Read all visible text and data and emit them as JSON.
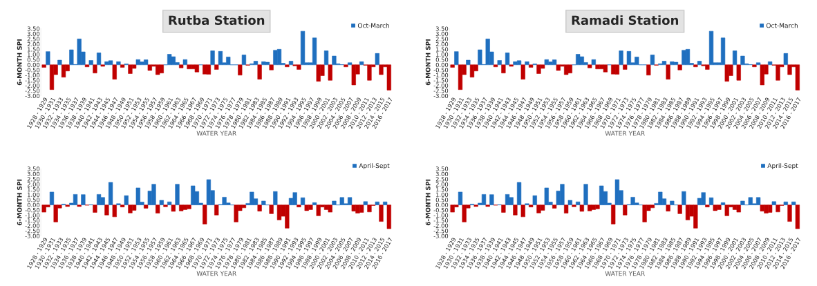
{
  "chart_data": [
    {
      "type": "bar",
      "title": "Rutba Station",
      "xlabel": "WATER YEAR",
      "ylabel": "6-MONTH SPI",
      "legend": "top right",
      "grid": false,
      "categories": [
        "1928 - 1929",
        null,
        "1930 - 1931",
        null,
        "1932 - 1933",
        null,
        "1934 - 1935",
        null,
        "1936 - 1937",
        null,
        "1938 - 1939",
        null,
        "1940 - 1941",
        null,
        "1942 - 1943",
        null,
        "1944 - 1945",
        null,
        "1946 - 1947",
        null,
        "1948 - 1949",
        null,
        "1950 - 1951",
        null,
        "1952 - 1953",
        null,
        "1954 - 1955",
        null,
        "1956 - 1957",
        null,
        "1958 - 1959",
        null,
        "1960 - 1961",
        null,
        "1962 - 1963",
        null,
        "1964 - 1965",
        null,
        "1966 - 1967",
        null,
        "1968 - 1969",
        null,
        "1970 - 1971",
        null,
        "1972 - 1973",
        null,
        "1974 - 1975",
        null,
        "1976 - 1977",
        null,
        "1978 - 1979",
        null,
        "1980 - 1981",
        null,
        "1982 - 1983",
        null,
        "1984 - 1985",
        null,
        "1986 - 1987",
        null,
        "1988 - 1989",
        null,
        "1990 - 1991",
        null,
        "1992 - 1993",
        null,
        "1994 - 1995",
        null,
        "1996 - 1997",
        null,
        "1998 - 1999",
        null,
        "2000 - 2001",
        null,
        "2002 - 2003",
        null,
        "2004 - 2005",
        null,
        "2006 - 2007",
        null,
        "2008 - 2009",
        null,
        "2010 - 2011",
        null,
        "2012 - 2013",
        null,
        "2014 - 2015",
        null,
        "2016 - 2017"
      ],
      "ylim": [
        -3.0,
        3.5
      ],
      "yticks": [
        {
          "value": -3.0,
          "label": "-3.00"
        },
        {
          "value": -2.5,
          "label": "-2.50"
        },
        {
          "value": -2.0,
          "label": "-2.00"
        },
        {
          "value": -1.5,
          "label": "-1.50"
        },
        {
          "value": -1.0,
          "label": "-1.00"
        },
        {
          "value": -0.5,
          "label": "-0.50"
        },
        {
          "value": 0,
          "label": "0.00"
        },
        {
          "value": 0.5,
          "label": "0.50"
        },
        {
          "value": 1.0,
          "label": "1.00"
        },
        {
          "value": 1.5,
          "label": "1.50"
        },
        {
          "value": 2.0,
          "label": "2.00"
        },
        {
          "value": 2.5,
          "label": "2.50"
        },
        {
          "value": 3.0,
          "label": "3.00"
        },
        {
          "value": 3.5,
          "label": "3.50"
        }
      ],
      "series": [
        {
          "name": "Oct-March",
          "color": "#1f6fbf",
          "colors": [
            "#c00000",
            "#1f6fbf",
            "#c00000",
            "#c00000",
            "#1f6fbf",
            "#c00000",
            "#c00000",
            "#1f6fbf",
            "#1f6fbf",
            "#1f6fbf",
            "#1f6fbf",
            "#c00000",
            "#1f6fbf",
            "#c00000",
            "#1f6fbf",
            "#c00000",
            "#1f6fbf",
            "#1f6fbf",
            "#c00000",
            "#1f6fbf",
            "#c00000",
            "#1f6fbf",
            "#c00000",
            "#c00000",
            "#1f6fbf",
            "#1f6fbf",
            "#1f6fbf",
            "#c00000",
            "#c00000",
            "#c00000",
            "#c00000",
            "#1f6fbf",
            "#1f6fbf",
            "#1f6fbf",
            "#1f6fbf",
            "#c00000",
            "#1f6fbf",
            "#c00000",
            "#c00000",
            "#c00000",
            "#1f6fbf",
            "#c00000",
            "#c00000",
            "#1f6fbf",
            "#c00000",
            "#1f6fbf",
            "#1f6fbf",
            "#1f6fbf",
            "#1f6fbf",
            "#1f6fbf",
            "#c00000",
            "#1f6fbf",
            "#c00000",
            "#1f6fbf",
            "#1f6fbf",
            "#c00000",
            "#1f6fbf",
            "#1f6fbf",
            "#c00000",
            "#1f6fbf",
            "#1f6fbf",
            "#1f6fbf",
            "#c00000",
            "#1f6fbf",
            "#c00000",
            "#c00000",
            "#1f6fbf",
            "#1f6fbf",
            "#1f6fbf",
            "#1f6fbf",
            "#c00000",
            "#c00000",
            "#1f6fbf",
            "#c00000",
            "#1f6fbf",
            "#1f6fbf",
            "#1f6fbf",
            "#c00000",
            "#1f6fbf",
            "#c00000",
            "#c00000",
            "#1f6fbf",
            "#c00000",
            "#c00000",
            "#c00000",
            "#1f6fbf",
            "#c00000",
            "#c00000",
            "#c00000"
          ],
          "values": [
            -0.25,
            1.28,
            -2.4,
            -0.95,
            0.45,
            -1.2,
            -0.6,
            1.45,
            0.03,
            2.5,
            1.25,
            -0.2,
            0.42,
            -0.8,
            1.15,
            -0.15,
            0.3,
            0.4,
            -1.4,
            0.3,
            -0.25,
            0.08,
            -0.85,
            -0.35,
            0.5,
            0.28,
            0.48,
            -0.55,
            -0.15,
            -0.95,
            -0.8,
            0,
            1.02,
            0.78,
            0.22,
            -0.3,
            0.5,
            -0.4,
            -0.4,
            -0.7,
            0,
            -0.9,
            -0.92,
            1.35,
            -0.45,
            1.3,
            0.2,
            0.75,
            0,
            0,
            -1.0,
            0.95,
            -0.05,
            0.1,
            0.35,
            -1.4,
            0.3,
            0.25,
            -0.5,
            1.4,
            1.5,
            0.15,
            -0.2,
            0.35,
            -0.1,
            -0.45,
            3.25,
            0.2,
            0.2,
            2.6,
            -1.6,
            -1.05,
            1.35,
            -1.5,
            0.85,
            0.1,
            0.02,
            -0.2,
            0.2,
            -1.95,
            -0.9,
            0.3,
            -0.05,
            -1.5,
            -0.2,
            1.1,
            -0.95,
            -0.2,
            -2.45
          ]
        }
      ]
    },
    {
      "type": "bar",
      "title": "Ramadi Station",
      "xlabel": "WATER YEAR",
      "ylabel": "6-MONTH SPI",
      "legend": "top right",
      "grid": false,
      "categories": [
        "1928 - 1929",
        null,
        "1930 - 1931",
        null,
        "1932 - 1933",
        null,
        "1934 - 1935",
        null,
        "1936 - 1937",
        null,
        "1938 - 1939",
        null,
        "1940 - 1941",
        null,
        "1942 - 1943",
        null,
        "1944 - 1945",
        null,
        "1946 - 1947",
        null,
        "1948 - 1949",
        null,
        "1950 - 1951",
        null,
        "1952 - 1953",
        null,
        "1954 - 1955",
        null,
        "1956 - 1957",
        null,
        "1958 - 1959",
        null,
        "1960 - 1961",
        null,
        "1962 - 1963",
        null,
        "1964 - 1965",
        null,
        "1966 - 1967",
        null,
        "1968 - 1969",
        null,
        "1970 - 1971",
        null,
        "1972 - 1973",
        null,
        "1974 - 1975",
        null,
        "1976 - 1977",
        null,
        "1978 - 1979",
        null,
        "1980 - 1981",
        null,
        "1982 - 1983",
        null,
        "1984 - 1985",
        null,
        "1986 - 1987",
        null,
        "1988 - 1989",
        null,
        "1990 - 1991",
        null,
        "1992 - 1993",
        null,
        "1994 - 1995",
        null,
        "1996 - 1997",
        null,
        "1998 - 1999",
        null,
        "2000 - 2001",
        null,
        "2002 - 2003",
        null,
        "2004 - 2005",
        null,
        "2006 - 2007",
        null,
        "2008 - 2009",
        null,
        "2010 - 2011",
        null,
        "2012 - 2013",
        null,
        "2014 - 2015",
        null,
        "2016 - 2017"
      ],
      "ylim": [
        -3.0,
        3.5
      ],
      "yticks": [
        {
          "value": -3.0,
          "label": "-3.00"
        },
        {
          "value": -2.5,
          "label": "-2.50"
        },
        {
          "value": -2.0,
          "label": "-2.00"
        },
        {
          "value": -1.5,
          "label": "-1.50"
        },
        {
          "value": -1.0,
          "label": "-1.00"
        },
        {
          "value": -0.5,
          "label": "-0.50"
        },
        {
          "value": 0,
          "label": "0.00"
        },
        {
          "value": 0.5,
          "label": "0.50"
        },
        {
          "value": 1.0,
          "label": "1.00"
        },
        {
          "value": 1.5,
          "label": "1.50"
        },
        {
          "value": 2.0,
          "label": "2.00"
        },
        {
          "value": 2.5,
          "label": "2.50"
        },
        {
          "value": 3.0,
          "label": "3.00"
        },
        {
          "value": 3.5,
          "label": "3.50"
        }
      ],
      "series": [
        {
          "name": "Oct-March",
          "color": "#1f6fbf",
          "colors": [
            "#c00000",
            "#1f6fbf",
            "#c00000",
            "#c00000",
            "#1f6fbf",
            "#c00000",
            "#c00000",
            "#1f6fbf",
            "#1f6fbf",
            "#1f6fbf",
            "#1f6fbf",
            "#c00000",
            "#1f6fbf",
            "#c00000",
            "#1f6fbf",
            "#c00000",
            "#1f6fbf",
            "#1f6fbf",
            "#c00000",
            "#1f6fbf",
            "#c00000",
            "#1f6fbf",
            "#c00000",
            "#c00000",
            "#1f6fbf",
            "#1f6fbf",
            "#1f6fbf",
            "#c00000",
            "#c00000",
            "#c00000",
            "#c00000",
            "#1f6fbf",
            "#1f6fbf",
            "#1f6fbf",
            "#1f6fbf",
            "#c00000",
            "#1f6fbf",
            "#c00000",
            "#c00000",
            "#c00000",
            "#1f6fbf",
            "#c00000",
            "#c00000",
            "#1f6fbf",
            "#c00000",
            "#1f6fbf",
            "#1f6fbf",
            "#1f6fbf",
            "#1f6fbf",
            "#1f6fbf",
            "#c00000",
            "#1f6fbf",
            "#c00000",
            "#1f6fbf",
            "#1f6fbf",
            "#c00000",
            "#1f6fbf",
            "#1f6fbf",
            "#c00000",
            "#1f6fbf",
            "#1f6fbf",
            "#1f6fbf",
            "#c00000",
            "#1f6fbf",
            "#c00000",
            "#c00000",
            "#1f6fbf",
            "#1f6fbf",
            "#1f6fbf",
            "#1f6fbf",
            "#c00000",
            "#c00000",
            "#1f6fbf",
            "#c00000",
            "#1f6fbf",
            "#1f6fbf",
            "#1f6fbf",
            "#c00000",
            "#1f6fbf",
            "#c00000",
            "#c00000",
            "#1f6fbf",
            "#c00000",
            "#c00000",
            "#c00000",
            "#1f6fbf",
            "#c00000",
            "#c00000",
            "#c00000"
          ],
          "values": [
            -0.25,
            1.28,
            -2.4,
            -0.95,
            0.45,
            -1.2,
            -0.6,
            1.45,
            0.03,
            2.5,
            1.25,
            -0.2,
            0.42,
            -0.8,
            1.15,
            -0.15,
            0.3,
            0.4,
            -1.4,
            0.3,
            -0.25,
            0.08,
            -0.85,
            -0.35,
            0.5,
            0.28,
            0.48,
            -0.55,
            -0.15,
            -0.95,
            -0.8,
            0,
            1.02,
            0.78,
            0.22,
            -0.3,
            0.5,
            -0.4,
            -0.4,
            -0.7,
            0,
            -0.9,
            -0.92,
            1.35,
            -0.45,
            1.3,
            0.2,
            0.75,
            0,
            0,
            -1.0,
            0.95,
            -0.05,
            0.1,
            0.35,
            -1.4,
            0.3,
            0.25,
            -0.5,
            1.4,
            1.5,
            0.15,
            -0.2,
            0.35,
            -0.1,
            -0.45,
            3.25,
            0.2,
            0.2,
            2.6,
            -1.6,
            -1.05,
            1.35,
            -1.5,
            0.85,
            0.1,
            0.02,
            -0.2,
            0.2,
            -1.95,
            -0.9,
            0.3,
            -0.05,
            -1.5,
            -0.2,
            1.1,
            -0.95,
            -0.2,
            -2.45
          ]
        }
      ]
    },
    {
      "type": "bar",
      "xlabel": "WATER YEAR",
      "ylabel": "6-MONTH SPI",
      "legend": "top right",
      "grid": false,
      "categories": [
        "1928 - 1929",
        null,
        "1930 - 1931",
        null,
        "1932 - 1933",
        null,
        "1934 - 1935",
        null,
        "1936 - 1937",
        null,
        "1938 - 1939",
        null,
        "1940 - 1941",
        null,
        "1942 - 1943",
        null,
        "1944 - 1945",
        null,
        "1946 - 1947",
        null,
        "1948 - 1949",
        null,
        "1950 - 1951",
        null,
        "1952 - 1953",
        null,
        "1954 - 1955",
        null,
        "1956 - 1957",
        null,
        "1958 - 1959",
        null,
        "1960 - 1961",
        null,
        "1962 - 1963",
        null,
        "1964 - 1965",
        null,
        "1966 - 1967",
        null,
        "1968 - 1969",
        null,
        "1970 - 1971",
        null,
        "1972 - 1973",
        null,
        "1974 - 1975",
        null,
        "1976 - 1977",
        null,
        "1978 - 1979",
        null,
        "1980 - 1981",
        null,
        "1982 - 1983",
        null,
        "1984 - 1985",
        null,
        "1986 - 1987",
        null,
        "1988 - 1989",
        null,
        "1990 - 1991",
        null,
        "1992 - 1993",
        null,
        "1994 - 1995",
        null,
        "1996 - 1997",
        null,
        "1998 - 1999",
        null,
        "2000 - 2001",
        null,
        "2002 - 2003",
        null,
        "2004 - 2005",
        null,
        "2006 - 2007",
        null,
        "2008 - 2009",
        null,
        "2010 - 2011",
        null,
        "2012 - 2013",
        null,
        "2014 - 2015",
        null,
        "2016 - 2017"
      ],
      "ylim": [
        -3.0,
        3.5
      ],
      "yticks": [
        {
          "value": -3.0,
          "label": "-3.00"
        },
        {
          "value": -2.5,
          "label": "-2.50"
        },
        {
          "value": -2.0,
          "label": "-2.00"
        },
        {
          "value": -1.5,
          "label": "-1.50"
        },
        {
          "value": -1.0,
          "label": "-1.00"
        },
        {
          "value": -0.5,
          "label": "-0.50"
        },
        {
          "value": 0,
          "label": "0.00"
        },
        {
          "value": 0.5,
          "label": "0.50"
        },
        {
          "value": 1.0,
          "label": "1.00"
        },
        {
          "value": 1.5,
          "label": "1.50"
        },
        {
          "value": 2.0,
          "label": "2.00"
        },
        {
          "value": 2.5,
          "label": "2.50"
        },
        {
          "value": 3.0,
          "label": "3.00"
        },
        {
          "value": 3.5,
          "label": "3.50"
        }
      ],
      "series": [
        {
          "name": "April-Sept",
          "color": "#1f6fbf",
          "colors": [
            "#c00000",
            "#c00000",
            "#1f6fbf",
            "#c00000",
            "#c00000",
            "#1f6fbf",
            "#c00000",
            "#1f6fbf",
            "#1f6fbf",
            "#c00000",
            "#1f6fbf",
            "#c00000",
            "#1f6fbf",
            "#c00000",
            "#1f6fbf",
            "#1f6fbf",
            "#c00000",
            "#1f6fbf",
            "#c00000",
            "#1f6fbf",
            "#c00000",
            "#1f6fbf",
            "#c00000",
            "#c00000",
            "#1f6fbf",
            "#1f6fbf",
            "#c00000",
            "#1f6fbf",
            "#1f6fbf",
            "#c00000",
            "#1f6fbf",
            "#c00000",
            "#1f6fbf",
            "#c00000",
            "#1f6fbf",
            "#c00000",
            "#c00000",
            "#c00000",
            "#1f6fbf",
            "#1f6fbf",
            "#1f6fbf",
            "#c00000",
            "#1f6fbf",
            "#1f6fbf",
            "#c00000",
            "#1f6fbf",
            "#1f6fbf",
            "#1f6fbf",
            "#1f6fbf",
            "#c00000",
            "#c00000",
            "#c00000",
            "#1f6fbf",
            "#1f6fbf",
            "#1f6fbf",
            "#c00000",
            "#1f6fbf",
            "#1f6fbf",
            "#c00000",
            "#1f6fbf",
            "#c00000",
            "#c00000",
            "#c00000",
            "#1f6fbf",
            "#1f6fbf",
            "#c00000",
            "#1f6fbf",
            "#c00000",
            "#c00000",
            "#1f6fbf",
            "#c00000",
            "#c00000",
            "#c00000",
            "#c00000",
            "#1f6fbf",
            "#1f6fbf",
            "#1f6fbf",
            "#1f6fbf",
            "#1f6fbf",
            "#c00000",
            "#c00000",
            "#c00000",
            "#1f6fbf",
            "#c00000",
            "#c00000",
            "#1f6fbf",
            "#c00000",
            "#1f6fbf",
            "#c00000"
          ],
          "values": [
            -0.7,
            -0.2,
            1.25,
            -1.65,
            -0.3,
            0.08,
            -0.15,
            0.18,
            1.02,
            -0.15,
            1.0,
            -0.03,
            0.02,
            -0.72,
            1.02,
            0.72,
            -0.98,
            2.18,
            -1.15,
            0.12,
            -0.2,
            0.9,
            -0.78,
            -0.52,
            1.65,
            0.28,
            -0.32,
            1.35,
            2.0,
            -0.8,
            0.45,
            -0.18,
            0.3,
            -0.62,
            2.0,
            -0.58,
            -0.45,
            -0.38,
            1.85,
            1.3,
            0.18,
            -1.85,
            2.45,
            1.4,
            -0.98,
            0.05,
            0.75,
            0.2,
            0,
            -1.65,
            -0.55,
            -0.28,
            0.15,
            1.25,
            0.6,
            -0.6,
            0.38,
            0,
            -0.85,
            1.3,
            -1.45,
            -1.1,
            -2.25,
            0.65,
            1.2,
            -0.2,
            0.7,
            -0.55,
            -0.45,
            0.22,
            -1.05,
            -0.2,
            -0.45,
            -0.7,
            0.38,
            0,
            0.72,
            0.12,
            0.72,
            -0.6,
            -0.8,
            -0.72,
            0.32,
            -0.68,
            -0.05,
            0.3,
            -1.6,
            0.3,
            -2.3
          ]
        }
      ]
    },
    {
      "type": "bar",
      "xlabel": "WATER YEAR",
      "ylabel": "6-MONTH SPI",
      "legend": "top right",
      "grid": false,
      "categories": [
        "1928 - 1929",
        null,
        "1930 - 1931",
        null,
        "1932 - 1933",
        null,
        "1934 - 1935",
        null,
        "1936 - 1937",
        null,
        "1938 - 1939",
        null,
        "1940 - 1941",
        null,
        "1942 - 1943",
        null,
        "1944 - 1945",
        null,
        "1946 - 1947",
        null,
        "1948 - 1949",
        null,
        "1950 - 1951",
        null,
        "1952 - 1953",
        null,
        "1954 - 1955",
        null,
        "1956 - 1957",
        null,
        "1958 - 1959",
        null,
        "1960 - 1961",
        null,
        "1962 - 1963",
        null,
        "1964 - 1965",
        null,
        "1966 - 1967",
        null,
        "1968 - 1969",
        null,
        "1970 - 1971",
        null,
        "1972 - 1973",
        null,
        "1974 - 1975",
        null,
        "1976 - 1977",
        null,
        "1978 - 1979",
        null,
        "1980 - 1981",
        null,
        "1982 - 1983",
        null,
        "1984 - 1985",
        null,
        "1986 - 1987",
        null,
        "1988 - 1989",
        null,
        "1990 - 1991",
        null,
        "1992 - 1993",
        null,
        "1994 - 1995",
        null,
        "1996 - 1997",
        null,
        "1998 - 1999",
        null,
        "2000 - 2001",
        null,
        "2002 - 2003",
        null,
        "2004 - 2005",
        null,
        "2006 - 2007",
        null,
        "2008 - 2009",
        null,
        "2010 - 2011",
        null,
        "2012 - 2013",
        null,
        "2014 - 2015",
        null,
        "2016 - 2017"
      ],
      "ylim": [
        -3.0,
        3.5
      ],
      "yticks": [
        {
          "value": -3.0,
          "label": "-3.00"
        },
        {
          "value": -2.5,
          "label": "-2.50"
        },
        {
          "value": -2.0,
          "label": "-2.00"
        },
        {
          "value": -1.5,
          "label": "-1.50"
        },
        {
          "value": -1.0,
          "label": "-1.00"
        },
        {
          "value": -0.5,
          "label": "-0.50"
        },
        {
          "value": 0,
          "label": "0.00"
        },
        {
          "value": 0.5,
          "label": "0.50"
        },
        {
          "value": 1.0,
          "label": "1.00"
        },
        {
          "value": 1.5,
          "label": "1.50"
        },
        {
          "value": 2.0,
          "label": "2.00"
        },
        {
          "value": 2.5,
          "label": "2.50"
        },
        {
          "value": 3.0,
          "label": "3.00"
        },
        {
          "value": 3.5,
          "label": "3.50"
        }
      ],
      "series": [
        {
          "name": "April-Sept",
          "color": "#1f6fbf",
          "colors": [
            "#c00000",
            "#c00000",
            "#1f6fbf",
            "#c00000",
            "#c00000",
            "#1f6fbf",
            "#c00000",
            "#1f6fbf",
            "#1f6fbf",
            "#c00000",
            "#1f6fbf",
            "#c00000",
            "#1f6fbf",
            "#c00000",
            "#1f6fbf",
            "#1f6fbf",
            "#c00000",
            "#1f6fbf",
            "#c00000",
            "#1f6fbf",
            "#c00000",
            "#1f6fbf",
            "#c00000",
            "#c00000",
            "#1f6fbf",
            "#1f6fbf",
            "#c00000",
            "#1f6fbf",
            "#1f6fbf",
            "#c00000",
            "#1f6fbf",
            "#c00000",
            "#1f6fbf",
            "#c00000",
            "#1f6fbf",
            "#c00000",
            "#c00000",
            "#c00000",
            "#1f6fbf",
            "#1f6fbf",
            "#1f6fbf",
            "#c00000",
            "#1f6fbf",
            "#1f6fbf",
            "#c00000",
            "#1f6fbf",
            "#1f6fbf",
            "#1f6fbf",
            "#1f6fbf",
            "#c00000",
            "#c00000",
            "#c00000",
            "#1f6fbf",
            "#1f6fbf",
            "#1f6fbf",
            "#c00000",
            "#1f6fbf",
            "#1f6fbf",
            "#c00000",
            "#1f6fbf",
            "#c00000",
            "#c00000",
            "#c00000",
            "#1f6fbf",
            "#1f6fbf",
            "#c00000",
            "#1f6fbf",
            "#c00000",
            "#c00000",
            "#1f6fbf",
            "#c00000",
            "#c00000",
            "#c00000",
            "#c00000",
            "#1f6fbf",
            "#1f6fbf",
            "#1f6fbf",
            "#1f6fbf",
            "#1f6fbf",
            "#c00000",
            "#c00000",
            "#c00000",
            "#1f6fbf",
            "#c00000",
            "#c00000",
            "#1f6fbf",
            "#c00000",
            "#1f6fbf",
            "#c00000"
          ],
          "values": [
            -0.7,
            -0.2,
            1.25,
            -1.65,
            -0.3,
            0.08,
            -0.15,
            0.18,
            1.02,
            -0.15,
            1.0,
            -0.03,
            0.02,
            -0.72,
            1.02,
            0.72,
            -0.98,
            2.18,
            -1.15,
            0.12,
            -0.2,
            0.9,
            -0.78,
            -0.52,
            1.65,
            0.28,
            -0.32,
            1.35,
            2.0,
            -0.8,
            0.45,
            -0.18,
            0.3,
            -0.62,
            2.0,
            -0.58,
            -0.45,
            -0.38,
            1.85,
            1.3,
            0.18,
            -1.85,
            2.45,
            1.4,
            -0.98,
            0.05,
            0.75,
            0.2,
            0,
            -1.65,
            -0.55,
            -0.28,
            0.15,
            1.25,
            0.6,
            -0.6,
            0.38,
            0,
            -0.85,
            1.3,
            -1.45,
            -1.1,
            -2.25,
            0.65,
            1.2,
            -0.2,
            0.7,
            -0.55,
            -0.45,
            0.22,
            -1.05,
            -0.2,
            -0.45,
            -0.7,
            0.38,
            0,
            0.72,
            0.12,
            0.72,
            -0.6,
            -0.8,
            -0.72,
            0.32,
            -0.68,
            -0.05,
            0.3,
            -1.6,
            0.3,
            -2.3
          ]
        }
      ]
    }
  ]
}
